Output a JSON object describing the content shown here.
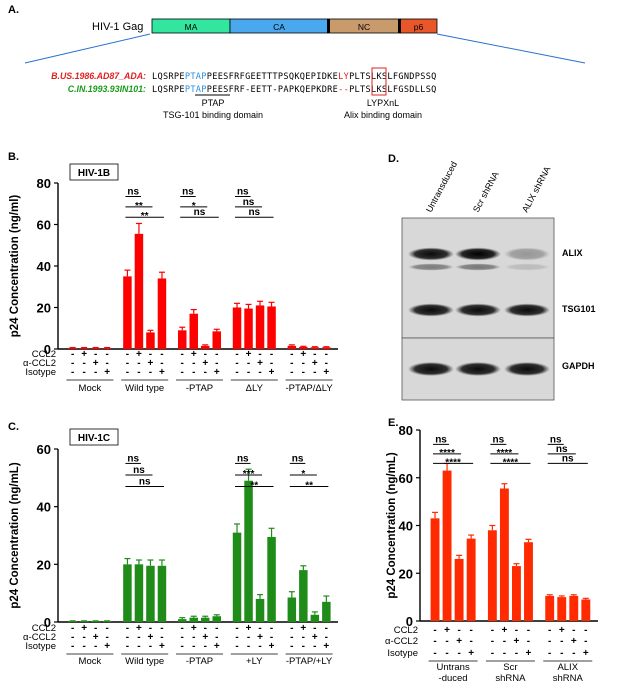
{
  "panel_a": {
    "label": "A.",
    "gene": "HIV-1 Gag",
    "domains": [
      {
        "name": "MA",
        "color": "#33e6a0"
      },
      {
        "name": "CA",
        "color": "#4aa8ef"
      },
      {
        "name": "NC",
        "color": "#c89a6c"
      },
      {
        "name": "p6",
        "color": "#e8562a"
      }
    ],
    "seq1_name": "B.US.1986.AD87_ADA:",
    "seq1_a": "LQSRPE",
    "seq1_ptap": "PTAP",
    "seq1_b": "PEESFRFGEETTTPSQKQEPIDKE",
    "seq1_ly": "LY",
    "seq1_c": "PLTSLKSLFGNDPSSQ",
    "seq2_name": "C.IN.1993.93IN101:",
    "seq2_a": "LQSRPE",
    "seq2_ptap": "PTAP",
    "seq2_b": "PEESFRF-EETT-PAPKQEPKDRE",
    "seq2_ly": "--",
    "seq2_c": "PLTSLKSLFGSDLLSQ",
    "motif1": "PTAP",
    "motif1_desc": "TSG-101 binding domain",
    "motif2": "LYPXnL",
    "motif2_desc": "Alix binding domain",
    "seq1_color": "#e02020",
    "seq2_color": "#1a9a1a",
    "ptap_color": "#2a8fe0"
  },
  "row_labels": [
    "CCL2",
    "α-CCL2",
    "Isotype"
  ],
  "chart_data": [
    {
      "panel": "B.",
      "type": "bar",
      "badge": "HIV-1B",
      "color": "#ff0000",
      "ylabel": "p24 Concentration (ng/ml)",
      "ylim": [
        0,
        80
      ],
      "yticks": [
        0,
        20,
        40,
        60,
        80
      ],
      "groups": [
        "Mock",
        "Wild type",
        "-PTAP",
        "ΔLY",
        "-PTAP/ΔLY"
      ],
      "values": [
        [
          0.5,
          0.5,
          0.5,
          0.5
        ],
        [
          35,
          55.5,
          8,
          34
        ],
        [
          9,
          17,
          1.5,
          8.5
        ],
        [
          20,
          19.5,
          21,
          20.5
        ],
        [
          1.5,
          1,
          0.8,
          0.8
        ]
      ],
      "errors": [
        [
          0.2,
          0.2,
          0.2,
          0.2
        ],
        [
          3,
          5,
          1,
          3
        ],
        [
          1.5,
          2,
          0.5,
          1
        ],
        [
          2,
          2,
          2,
          2
        ],
        [
          0.5,
          0.3,
          0.3,
          0.3
        ]
      ],
      "signs": [
        [
          "-",
          "+",
          "-",
          "-"
        ],
        [
          "-",
          "-",
          "+",
          "-"
        ],
        [
          "-",
          "-",
          "-",
          "+"
        ]
      ],
      "sig": [
        {
          "group": 1,
          "to": 1,
          "y": 73.5,
          "label": "ns"
        },
        {
          "group": 1,
          "to": 2,
          "y": 68.5,
          "label": "**"
        },
        {
          "group": 1,
          "to": 3,
          "y": 63.5,
          "label": "**"
        },
        {
          "group": 2,
          "to": 1,
          "y": 73.5,
          "label": "ns"
        },
        {
          "group": 2,
          "to": 2,
          "y": 68.5,
          "label": "*"
        },
        {
          "group": 2,
          "to": 3,
          "y": 63.5,
          "label": "ns"
        },
        {
          "group": 3,
          "to": 1,
          "y": 73.5,
          "label": "ns"
        },
        {
          "group": 3,
          "to": 2,
          "y": 68.5,
          "label": "ns"
        },
        {
          "group": 3,
          "to": 3,
          "y": 63.5,
          "label": "ns"
        }
      ]
    },
    {
      "panel": "C.",
      "type": "bar",
      "badge": "HIV-1C",
      "color": "#1f8c1a",
      "ylabel": "p24 Concentration (ng/mL)",
      "ylim": [
        0,
        60
      ],
      "yticks": [
        0,
        20,
        40,
        60
      ],
      "groups": [
        "Mock",
        "Wild type",
        "-PTAP",
        "+LY",
        "-PTAP/+LY"
      ],
      "values": [
        [
          0.3,
          0.3,
          0.3,
          0.3
        ],
        [
          20,
          20,
          19.5,
          19.5
        ],
        [
          1,
          1.5,
          1.5,
          2
        ],
        [
          31,
          49,
          8,
          29.5
        ],
        [
          8.5,
          18,
          2.5,
          7
        ]
      ],
      "errors": [
        [
          0.1,
          0.1,
          0.1,
          0.1
        ],
        [
          2,
          1.5,
          2,
          2
        ],
        [
          0.5,
          0.5,
          0.5,
          0.5
        ],
        [
          3,
          4,
          1.5,
          3
        ],
        [
          2,
          1.5,
          1,
          2
        ]
      ],
      "signs": [
        [
          "-",
          "+",
          "-",
          "-"
        ],
        [
          "-",
          "-",
          "+",
          "-"
        ],
        [
          "-",
          "-",
          "-",
          "+"
        ]
      ],
      "sig": [
        {
          "group": 1,
          "to": 1,
          "y": 55,
          "label": "ns"
        },
        {
          "group": 1,
          "to": 2,
          "y": 51,
          "label": "ns"
        },
        {
          "group": 1,
          "to": 3,
          "y": 47,
          "label": "ns"
        },
        {
          "group": 3,
          "to": 1,
          "y": 55,
          "label": "ns"
        },
        {
          "group": 3,
          "to": 2,
          "y": 51,
          "label": "***"
        },
        {
          "group": 3,
          "to": 3,
          "y": 47,
          "label": "**"
        },
        {
          "group": 4,
          "to": 1,
          "y": 55,
          "label": "ns"
        },
        {
          "group": 4,
          "to": 2,
          "y": 51,
          "label": "*"
        },
        {
          "group": 4,
          "to": 3,
          "y": 47,
          "label": "**"
        }
      ]
    },
    {
      "panel": "E.",
      "type": "bar",
      "badge": "",
      "color": "#ff2a00",
      "ylabel": "p24 Concentration (ng/mL)",
      "ylim": [
        0,
        80
      ],
      "yticks": [
        0,
        20,
        40,
        60,
        80
      ],
      "groups": [
        "Untrans\n-duced",
        "Scr\nshRNA",
        "ALIX\nshRNA"
      ],
      "values": [
        [
          43,
          63,
          26,
          34.5
        ],
        [
          38,
          55.5,
          23,
          33
        ],
        [
          10.5,
          10,
          10.5,
          9
        ]
      ],
      "errors": [
        [
          2.5,
          3,
          1.5,
          1.5
        ],
        [
          2,
          2,
          1,
          1.2
        ],
        [
          0.5,
          0.5,
          0.5,
          0.5
        ]
      ],
      "signs": [
        [
          "-",
          "+",
          "-",
          "-"
        ],
        [
          "-",
          "-",
          "+",
          "-"
        ],
        [
          "-",
          "-",
          "-",
          "+"
        ]
      ],
      "sig": [
        {
          "group": 0,
          "to": 1,
          "y": 74,
          "label": "ns"
        },
        {
          "group": 0,
          "to": 2,
          "y": 70,
          "label": "****"
        },
        {
          "group": 0,
          "to": 3,
          "y": 66,
          "label": "****"
        },
        {
          "group": 1,
          "to": 1,
          "y": 74,
          "label": "ns"
        },
        {
          "group": 1,
          "to": 2,
          "y": 70,
          "label": "****"
        },
        {
          "group": 1,
          "to": 3,
          "y": 66,
          "label": "****"
        },
        {
          "group": 2,
          "to": 1,
          "y": 74,
          "label": "ns"
        },
        {
          "group": 2,
          "to": 2,
          "y": 70,
          "label": "ns"
        },
        {
          "group": 2,
          "to": 3,
          "y": 66,
          "label": "ns"
        }
      ]
    }
  ],
  "panel_d": {
    "label": "D.",
    "lanes": [
      "Untransduced",
      "Scr shRNA",
      "ALIX shRNA"
    ],
    "bands": [
      "ALIX",
      "TSG101",
      "GAPDH"
    ],
    "alix_intensity": [
      0.95,
      1.0,
      0.3
    ],
    "tsg_intensity": [
      0.95,
      0.95,
      0.95
    ],
    "gapdh_intensity": [
      0.95,
      0.95,
      0.95
    ]
  }
}
